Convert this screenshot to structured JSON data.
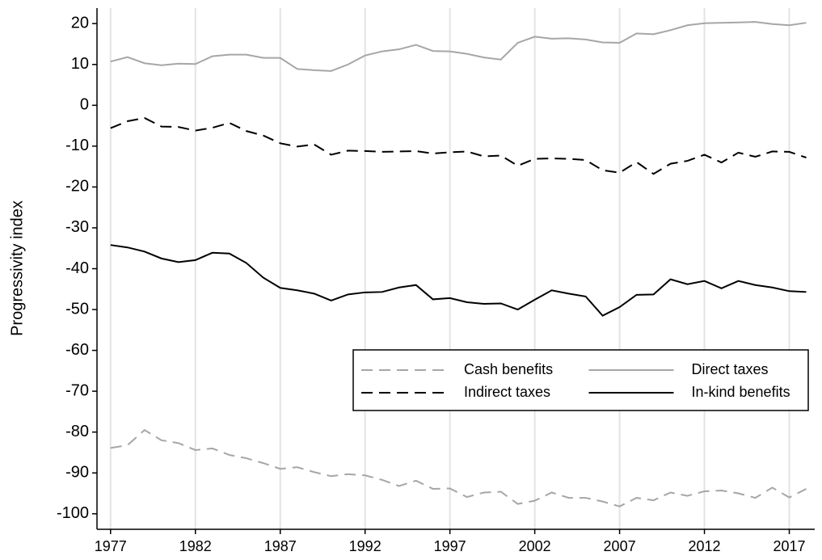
{
  "chart_data": {
    "type": "line",
    "y_label": "Progressivity index",
    "x": [
      1977,
      1978,
      1979,
      1980,
      1981,
      1982,
      1983,
      1984,
      1985,
      1986,
      1987,
      1988,
      1989,
      1990,
      1991,
      1992,
      1993,
      1994,
      1995,
      1996,
      1997,
      1998,
      1999,
      2000,
      2001,
      2002,
      2003,
      2004,
      2005,
      2006,
      2007,
      2008,
      2009,
      2010,
      2011,
      2012,
      2013,
      2014,
      2015,
      2016,
      2017,
      2018
    ],
    "series": [
      {
        "name": "Cash benefits",
        "color": "#a6a6a6",
        "dash": "dashed",
        "values": [
          -83.9,
          -83.2,
          -79.5,
          -82.0,
          -82.7,
          -84.4,
          -84.0,
          -85.6,
          -86.4,
          -87.6,
          -89.0,
          -88.6,
          -89.8,
          -90.8,
          -90.3,
          -90.6,
          -91.7,
          -93.2,
          -91.9,
          -93.9,
          -93.8,
          -95.9,
          -94.8,
          -94.6,
          -97.6,
          -96.8,
          -94.8,
          -96.1,
          -96.1,
          -97.0,
          -98.2,
          -96.1,
          -96.7,
          -94.8,
          -95.6,
          -94.5,
          -94.3,
          -95.0,
          -96.1,
          -93.6,
          -96.0,
          -93.9
        ]
      },
      {
        "name": "Direct taxes",
        "color": "#a6a6a6",
        "dash": "solid",
        "values": [
          10.7,
          11.8,
          10.3,
          9.8,
          10.2,
          10.1,
          12.0,
          12.4,
          12.4,
          11.6,
          11.6,
          8.9,
          8.6,
          8.4,
          10.0,
          12.2,
          13.2,
          13.7,
          14.8,
          13.3,
          13.2,
          12.6,
          11.7,
          11.2,
          15.3,
          16.8,
          16.3,
          16.4,
          16.1,
          15.4,
          15.3,
          17.6,
          17.4,
          18.4,
          19.6,
          20.1,
          20.2,
          20.3,
          20.4,
          19.9,
          19.6,
          20.2
        ]
      },
      {
        "name": "Indirect taxes",
        "color": "#000000",
        "dash": "dashed",
        "values": [
          -5.6,
          -3.9,
          -3.1,
          -5.2,
          -5.3,
          -6.2,
          -5.5,
          -4.3,
          -6.3,
          -7.4,
          -9.3,
          -10.1,
          -9.6,
          -12.1,
          -11.1,
          -11.2,
          -11.4,
          -11.3,
          -11.2,
          -11.8,
          -11.5,
          -11.3,
          -12.5,
          -12.3,
          -14.8,
          -13.1,
          -13.0,
          -13.1,
          -13.4,
          -15.9,
          -16.5,
          -13.9,
          -16.8,
          -14.3,
          -13.6,
          -12.1,
          -14.0,
          -11.6,
          -12.6,
          -11.3,
          -11.4,
          -12.8
        ]
      },
      {
        "name": "In-kind benefits",
        "color": "#000000",
        "dash": "solid",
        "values": [
          -34.2,
          -34.8,
          -35.8,
          -37.5,
          -38.4,
          -37.9,
          -36.1,
          -36.3,
          -38.6,
          -42.2,
          -44.7,
          -45.3,
          -46.1,
          -47.8,
          -46.3,
          -45.8,
          -45.7,
          -44.6,
          -44.0,
          -47.5,
          -47.2,
          -48.2,
          -48.6,
          -48.5,
          -50.0,
          -47.6,
          -45.3,
          -46.1,
          -46.8,
          -51.5,
          -49.4,
          -46.4,
          -46.3,
          -42.6,
          -43.8,
          -43.0,
          -44.8,
          -43.0,
          -44.0,
          -44.6,
          -45.5,
          -45.7
        ]
      }
    ],
    "xlim": [
      1976.2,
      2018.5
    ],
    "xticks": [
      1977,
      1982,
      1987,
      1992,
      1997,
      2002,
      2007,
      2012,
      2017
    ],
    "ylim": [
      -103.8,
      23.8
    ],
    "yticks": [
      -100,
      -90,
      -80,
      -70,
      -60,
      -50,
      -40,
      -30,
      -20,
      -10,
      0,
      10,
      20
    ],
    "grid": "x",
    "legend_position": "right",
    "legend_columns": 2
  }
}
